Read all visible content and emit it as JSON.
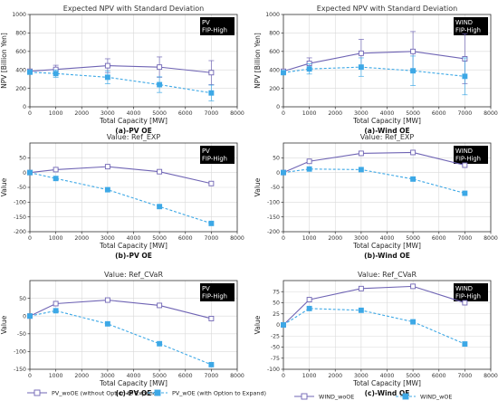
{
  "chart_data": [
    {
      "type": "line",
      "title": "Expected NPV with Standard Deviation",
      "caption": "(a)-PV OE",
      "tag": [
        "PV",
        "FIP-High"
      ],
      "xlabel": "Total Capacity [MW]",
      "ylabel": "NPV [Billion Yen]",
      "xlim": [
        0,
        8000
      ],
      "ylim": [
        0,
        1000
      ],
      "xticks": [
        0,
        1000,
        2000,
        3000,
        4000,
        5000,
        6000,
        7000,
        8000
      ],
      "yticks": [
        0,
        200,
        400,
        600,
        800,
        1000
      ],
      "x": [
        0,
        1000,
        3000,
        5000,
        7000
      ],
      "grid": true,
      "series": [
        {
          "name": "PV_woOE (without Option to Expand)",
          "values": [
            385,
            405,
            445,
            430,
            370
          ],
          "errors": [
            0,
            45,
            75,
            110,
            130
          ],
          "color": "#6f64b4"
        },
        {
          "name": "PV_wOE (with Option to Expand)",
          "values": [
            375,
            360,
            320,
            240,
            150
          ],
          "errors": [
            0,
            40,
            70,
            85,
            85
          ],
          "color": "#3da8e6"
        }
      ]
    },
    {
      "type": "line",
      "title": "Expected NPV with Standard Deviation",
      "caption": "(a)-Wind OE",
      "tag": [
        "WIND",
        "FIP-High"
      ],
      "xlabel": "Total Capacity [MW]",
      "ylabel": "NPV [Billion Yen]",
      "xlim": [
        0,
        8000
      ],
      "ylim": [
        0,
        1000
      ],
      "xticks": [
        0,
        1000,
        2000,
        3000,
        4000,
        5000,
        6000,
        7000,
        8000
      ],
      "yticks": [
        0,
        200,
        400,
        600,
        800,
        1000
      ],
      "x": [
        0,
        1000,
        3000,
        5000,
        7000
      ],
      "grid": true,
      "series": [
        {
          "name": "WIND_woOE",
          "values": [
            385,
            470,
            580,
            600,
            520
          ],
          "errors": [
            0,
            60,
            150,
            215,
            270
          ],
          "color": "#6f64b4"
        },
        {
          "name": "WIND_wOE",
          "values": [
            370,
            410,
            430,
            390,
            330
          ],
          "errors": [
            0,
            55,
            100,
            160,
            200
          ],
          "color": "#3da8e6"
        }
      ]
    },
    {
      "type": "line",
      "title": "Value: Ref_EXP",
      "caption": "(b)-PV OE",
      "tag": [
        "PV",
        "FIP-High"
      ],
      "xlabel": "Total Capacity [MW]",
      "ylabel": "Value",
      "xlim": [
        0,
        8000
      ],
      "ylim": [
        -200,
        100
      ],
      "xticks": [
        0,
        1000,
        2000,
        3000,
        4000,
        5000,
        6000,
        7000,
        8000
      ],
      "yticks": [
        -200,
        -150,
        -100,
        -50,
        0,
        50
      ],
      "x": [
        0,
        1000,
        3000,
        5000,
        7000
      ],
      "grid": true,
      "series": [
        {
          "name": "PV_woOE (without Option to Expand)",
          "values": [
            0,
            10,
            20,
            3,
            -37
          ],
          "color": "#6f64b4"
        },
        {
          "name": "PV_wOE (with Option to Expand)",
          "values": [
            0,
            -20,
            -58,
            -115,
            -172
          ],
          "color": "#3da8e6"
        }
      ]
    },
    {
      "type": "line",
      "title": "Value: Ref_EXP",
      "caption": "(b)-Wind OE",
      "tag": [
        "WIND",
        "FIP-High"
      ],
      "xlabel": "Total Capacity [MW]",
      "ylabel": "Value",
      "xlim": [
        0,
        8000
      ],
      "ylim": [
        -200,
        100
      ],
      "xticks": [
        0,
        1000,
        2000,
        3000,
        4000,
        5000,
        6000,
        7000,
        8000
      ],
      "yticks": [
        -200,
        -150,
        -100,
        -50,
        0,
        50
      ],
      "x": [
        0,
        1000,
        3000,
        5000,
        7000
      ],
      "grid": true,
      "series": [
        {
          "name": "WIND_woOE",
          "values": [
            0,
            38,
            65,
            68,
            25
          ],
          "color": "#6f64b4"
        },
        {
          "name": "WIND_wOE",
          "values": [
            0,
            12,
            10,
            -22,
            -70
          ],
          "color": "#3da8e6"
        }
      ]
    },
    {
      "type": "line",
      "title": "Value: Ref_CVaR",
      "caption": "(c)-PV OE",
      "tag": [
        "PV",
        "FIP-High"
      ],
      "xlabel": "Total Capacity [MW]",
      "ylabel": "Value",
      "xlim": [
        0,
        8000
      ],
      "ylim": [
        -150,
        100
      ],
      "xticks": [
        0,
        1000,
        2000,
        3000,
        4000,
        5000,
        6000,
        7000,
        8000
      ],
      "yticks": [
        -150,
        -100,
        -50,
        0,
        50
      ],
      "x": [
        0,
        1000,
        3000,
        5000,
        7000
      ],
      "grid": true,
      "series": [
        {
          "name": "PV_woOE (without Option to Expand)",
          "values": [
            0,
            35,
            45,
            30,
            -7
          ],
          "color": "#6f64b4"
        },
        {
          "name": "PV_wOE (with Option to Expand)",
          "values": [
            0,
            15,
            -22,
            -78,
            -137
          ],
          "color": "#3da8e6"
        }
      ]
    },
    {
      "type": "line",
      "title": "Value: Ref_CVaR",
      "caption": "(c)-Wind OE",
      "tag": [
        "WIND",
        "FIP-High"
      ],
      "xlabel": "Total Capacity [MW]",
      "ylabel": "Value",
      "xlim": [
        0,
        8000
      ],
      "ylim": [
        -100,
        100
      ],
      "xticks": [
        0,
        1000,
        2000,
        3000,
        4000,
        5000,
        6000,
        7000,
        8000
      ],
      "yticks": [
        -100,
        -75,
        -50,
        -25,
        0,
        25,
        50,
        75
      ],
      "x": [
        0,
        1000,
        3000,
        5000,
        7000
      ],
      "grid": true,
      "series": [
        {
          "name": "WIND_woOE",
          "values": [
            0,
            57,
            82,
            87,
            50
          ],
          "color": "#6f64b4"
        },
        {
          "name": "WIND_wOE",
          "values": [
            0,
            37,
            33,
            7,
            -43
          ],
          "color": "#3da8e6"
        }
      ]
    }
  ],
  "legend": [
    {
      "label": "PV_woOE (without Option to Expand)",
      "marker": "open-square",
      "style": "solid",
      "color": "#6f64b4"
    },
    {
      "label": "PV_wOE (with Option to Expand)",
      "marker": "filled-square",
      "style": "dashed",
      "color": "#3da8e6"
    },
    {
      "label": "WIND_woOE",
      "marker": "open-square",
      "style": "solid",
      "color": "#6f64b4"
    },
    {
      "label": "WIND_wOE",
      "marker": "filled-square",
      "style": "dashed",
      "color": "#3da8e6"
    }
  ]
}
